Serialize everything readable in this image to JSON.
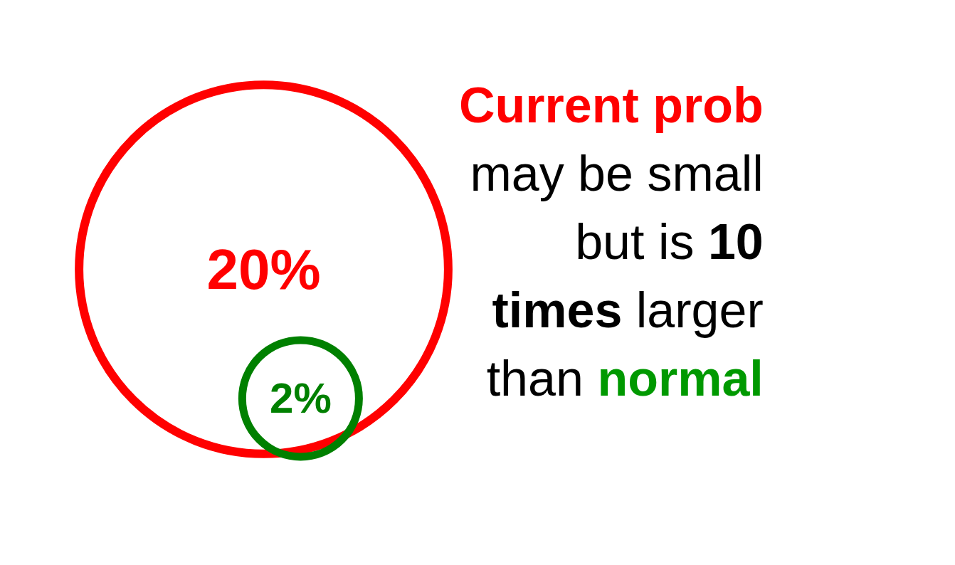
{
  "chart_data": {
    "type": "other",
    "categories": [
      null,
      null
    ],
    "values": [
      20,
      2
    ],
    "colors": [
      "#ff0000",
      "#008000"
    ],
    "value_labels": [
      "20%",
      "2%"
    ],
    "annotations": [
      "Current prob",
      "may be small",
      "but is",
      "10",
      "times",
      "larger",
      "than",
      "normal"
    ]
  }
}
